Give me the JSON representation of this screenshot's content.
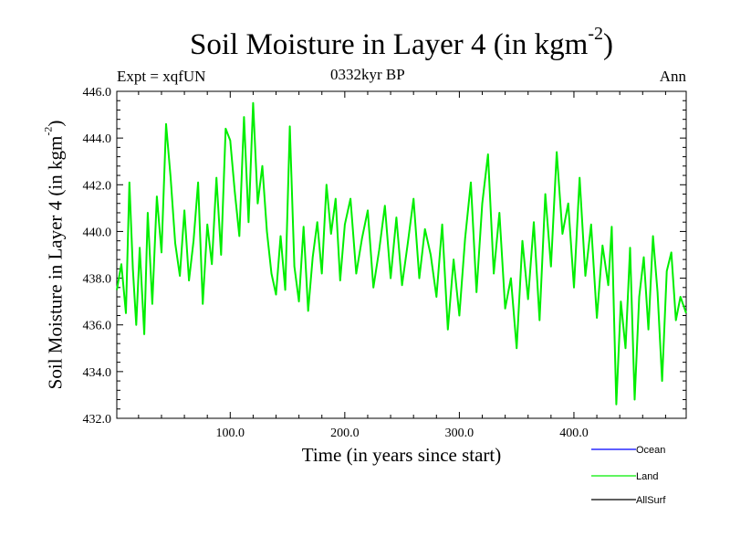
{
  "chart_data": {
    "type": "line",
    "title": "Soil Moisture in Layer 4 (in kgm",
    "title_superscript": "-2",
    "title_suffix": ")",
    "subtitle_left": "Expt = xqfUN",
    "subtitle_center": "0332kyr BP",
    "subtitle_right": "Ann",
    "xlabel": "Time (in years since start)",
    "ylabel": "Soil Moisture in Layer 4 (in kgm",
    "ylabel_superscript": "-2",
    "ylabel_suffix": ")",
    "xlim": [
      1,
      498
    ],
    "ylim": [
      432.0,
      446.0
    ],
    "xticks": [
      100,
      200,
      300,
      400
    ],
    "xtick_labels": [
      "100.0",
      "200.0",
      "300.0",
      "400.0"
    ],
    "yticks": [
      432,
      434,
      436,
      438,
      440,
      442,
      444,
      446
    ],
    "ytick_labels": [
      "432.0",
      "434.0",
      "436.0",
      "438.0",
      "440.0",
      "442.0",
      "444.0",
      "446.0"
    ],
    "legend_position": "bottom-right",
    "series": [
      {
        "name": "Ocean",
        "color": "#0000ff",
        "x": [],
        "values": []
      },
      {
        "name": "Land",
        "color": "#00ee00",
        "x": [
          1,
          5,
          9,
          12,
          15,
          18,
          21,
          25,
          28,
          32,
          36,
          40,
          44,
          48,
          52,
          56,
          60,
          64,
          68,
          72,
          76,
          80,
          84,
          88,
          92,
          96,
          100,
          104,
          108,
          112,
          116,
          120,
          124,
          128,
          132,
          136,
          140,
          144,
          148,
          152,
          156,
          160,
          164,
          168,
          172,
          176,
          180,
          184,
          188,
          192,
          196,
          200,
          205,
          210,
          215,
          220,
          225,
          230,
          235,
          240,
          245,
          250,
          255,
          260,
          265,
          270,
          275,
          280,
          285,
          290,
          295,
          300,
          305,
          310,
          315,
          320,
          325,
          330,
          335,
          340,
          345,
          350,
          355,
          360,
          365,
          370,
          375,
          380,
          385,
          390,
          395,
          400,
          405,
          410,
          415,
          420,
          425,
          430,
          433,
          437,
          441,
          445,
          449,
          453,
          457,
          461,
          465,
          469,
          473,
          477,
          481,
          485,
          489,
          493,
          498
        ],
        "values": [
          437.5,
          438.6,
          436.5,
          442.1,
          438.4,
          436.0,
          439.3,
          435.6,
          440.8,
          436.9,
          441.5,
          439.1,
          444.6,
          442.3,
          439.5,
          438.1,
          440.9,
          437.9,
          439.6,
          442.1,
          436.9,
          440.3,
          438.6,
          442.3,
          439.0,
          444.4,
          443.9,
          441.7,
          439.8,
          444.9,
          440.4,
          445.5,
          441.2,
          442.8,
          440.0,
          438.2,
          437.3,
          439.8,
          437.5,
          444.5,
          438.5,
          437.0,
          440.2,
          436.6,
          438.9,
          440.4,
          438.2,
          442.0,
          439.9,
          441.4,
          437.9,
          440.3,
          441.4,
          438.2,
          439.7,
          440.9,
          437.6,
          439.2,
          441.1,
          438.0,
          440.6,
          437.7,
          439.5,
          441.4,
          438.0,
          440.1,
          439.0,
          437.2,
          440.3,
          435.8,
          438.8,
          436.4,
          439.7,
          442.1,
          437.4,
          441.2,
          443.3,
          438.2,
          440.8,
          436.7,
          438.0,
          435.0,
          439.6,
          437.1,
          440.4,
          436.2,
          441.6,
          438.5,
          443.4,
          439.9,
          441.2,
          437.6,
          442.3,
          438.1,
          440.3,
          436.3,
          439.4,
          437.7,
          440.2,
          432.6,
          437.0,
          435.0,
          439.3,
          432.8,
          437.2,
          438.9,
          435.8,
          439.8,
          437.4,
          433.6,
          438.3,
          439.1,
          436.2,
          437.2,
          436.5
        ]
      },
      {
        "name": "AllSurf",
        "color": "#000000",
        "x": [],
        "values": []
      }
    ]
  }
}
